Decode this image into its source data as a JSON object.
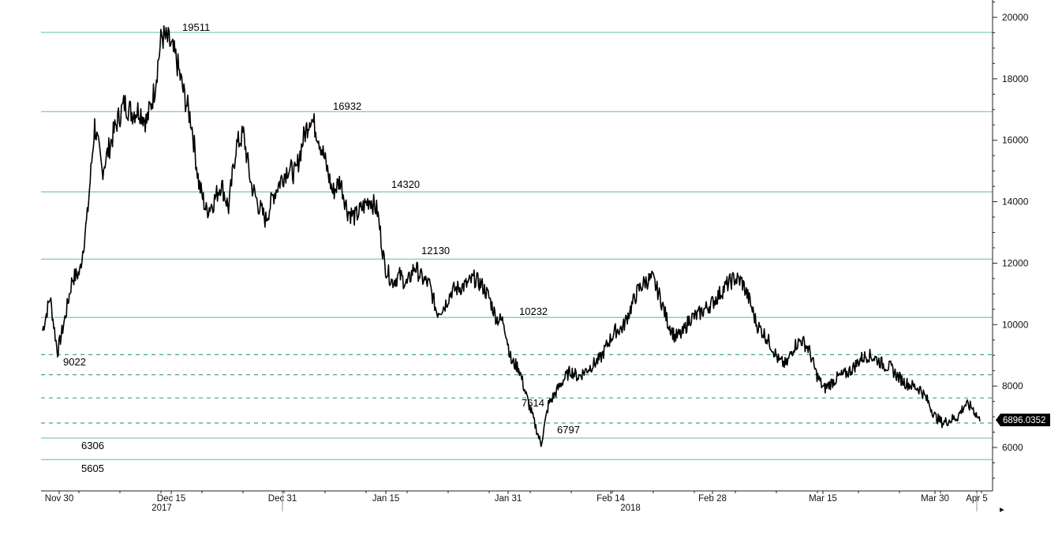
{
  "chart_data": {
    "type": "line",
    "x_axis": {
      "date_labels": [
        "Nov 30",
        "Dec 15",
        "Dec 31",
        "Jan 15",
        "Jan 31",
        "Feb 14",
        "Feb 28",
        "Mar 15",
        "Mar 30",
        "Apr 5"
      ],
      "year_labels": [
        "2017",
        "2018"
      ]
    },
    "y_axis": {
      "ticks": [
        6000,
        8000,
        10000,
        12000,
        14000,
        16000,
        18000,
        20000
      ],
      "range": [
        4700,
        20600
      ],
      "side": "right"
    },
    "last_price_label": "6896.0352",
    "levels_solid": [
      {
        "value": 19511,
        "label": "19511"
      },
      {
        "value": 16932,
        "label": "16932"
      },
      {
        "value": 14320,
        "label": "14320"
      },
      {
        "value": 12130,
        "label": "12130"
      },
      {
        "value": 10232,
        "label": "10232"
      },
      {
        "value": 6306,
        "label": "6306"
      },
      {
        "value": 5605,
        "label": "5605"
      }
    ],
    "levels_dashed": [
      {
        "value": 9022,
        "label": "9022"
      },
      {
        "value": 8370,
        "label": ""
      },
      {
        "value": 7614,
        "label": "7614"
      },
      {
        "value": 6797,
        "label": "6797"
      }
    ],
    "series": [
      {
        "date": [
          "2017-11-30",
          "2017-12-01",
          "2017-12-02",
          "2017-12-03",
          "2017-12-04",
          "2017-12-05",
          "2017-12-06",
          "2017-12-07",
          "2017-12-08",
          "2017-12-09",
          "2017-12-10",
          "2017-12-11",
          "2017-12-12",
          "2017-12-13",
          "2017-12-14",
          "2017-12-15",
          "2017-12-16",
          "2017-12-17",
          "2017-12-18",
          "2017-12-19",
          "2017-12-20",
          "2017-12-21",
          "2017-12-22",
          "2017-12-23",
          "2017-12-24",
          "2017-12-25",
          "2017-12-26",
          "2017-12-27",
          "2017-12-28",
          "2017-12-29",
          "2017-12-30",
          "2017-12-31",
          "2018-01-01",
          "2018-01-02",
          "2018-01-03",
          "2018-01-04",
          "2018-01-05",
          "2018-01-06",
          "2018-01-07",
          "2018-01-08",
          "2018-01-09",
          "2018-01-10",
          "2018-01-11",
          "2018-01-12",
          "2018-01-13",
          "2018-01-14",
          "2018-01-15",
          "2018-01-16",
          "2018-01-17",
          "2018-01-18",
          "2018-01-19",
          "2018-01-20",
          "2018-01-21",
          "2018-01-22",
          "2018-01-23",
          "2018-01-24",
          "2018-01-25",
          "2018-01-26",
          "2018-01-27",
          "2018-01-28",
          "2018-01-29",
          "2018-01-30",
          "2018-01-31",
          "2018-02-01",
          "2018-02-02",
          "2018-02-03",
          "2018-02-04",
          "2018-02-05",
          "2018-02-06",
          "2018-02-07",
          "2018-02-08",
          "2018-02-09",
          "2018-02-10",
          "2018-02-11",
          "2018-02-12",
          "2018-02-13",
          "2018-02-14",
          "2018-02-15",
          "2018-02-16",
          "2018-02-17",
          "2018-02-18",
          "2018-02-19",
          "2018-02-20",
          "2018-02-21",
          "2018-02-22",
          "2018-02-23",
          "2018-02-24",
          "2018-02-25",
          "2018-02-26",
          "2018-02-27",
          "2018-02-28",
          "2018-03-01",
          "2018-03-02",
          "2018-03-03",
          "2018-03-04",
          "2018-03-05",
          "2018-03-06",
          "2018-03-07",
          "2018-03-08",
          "2018-03-09",
          "2018-03-10",
          "2018-03-11",
          "2018-03-12",
          "2018-03-13",
          "2018-03-14",
          "2018-03-15",
          "2018-03-16",
          "2018-03-17",
          "2018-03-18",
          "2018-03-19",
          "2018-03-20",
          "2018-03-21",
          "2018-03-22",
          "2018-03-23",
          "2018-03-24",
          "2018-03-25",
          "2018-03-26",
          "2018-03-27",
          "2018-03-28",
          "2018-03-29",
          "2018-03-30",
          "2018-03-31",
          "2018-04-01",
          "2018-04-02",
          "2018-04-03",
          "2018-04-04",
          "2018-04-05"
        ],
        "values": [
          9800,
          10900,
          9100,
          10200,
          11500,
          11700,
          13500,
          16500,
          15000,
          15800,
          16600,
          17200,
          16900,
          17000,
          16600,
          17600,
          19400,
          19200,
          18600,
          17500,
          16600,
          14600,
          13700,
          14000,
          14600,
          13800,
          15800,
          16200,
          14600,
          13900,
          13400,
          14200,
          14700,
          15100,
          14900,
          16000,
          16800,
          16200,
          15300,
          14300,
          14700,
          13700,
          13500,
          13800,
          14100,
          13700,
          11900,
          11400,
          11600,
          11300,
          11900,
          11500,
          11300,
          10400,
          10600,
          11100,
          11200,
          11300,
          11500,
          11300,
          10900,
          10200,
          10100,
          8800,
          8600,
          7700,
          6900,
          6100,
          7400,
          7800,
          8200,
          8500,
          8300,
          8500,
          8700,
          8900,
          9400,
          9800,
          9900,
          10500,
          11100,
          11400,
          11500,
          10900,
          10100,
          9600,
          9700,
          10200,
          10300,
          10500,
          10700,
          11000,
          11300,
          11500,
          11400,
          10800,
          10000,
          9700,
          9300,
          8800,
          8700,
          9300,
          9500,
          9200,
          8400,
          7900,
          8100,
          8300,
          8400,
          8600,
          8900,
          9000,
          8900,
          8700,
          8600,
          8300,
          8100,
          8000,
          7900,
          7500,
          7000,
          6800,
          6900,
          7000,
          7400,
          7300,
          6850
        ]
      }
    ]
  }
}
